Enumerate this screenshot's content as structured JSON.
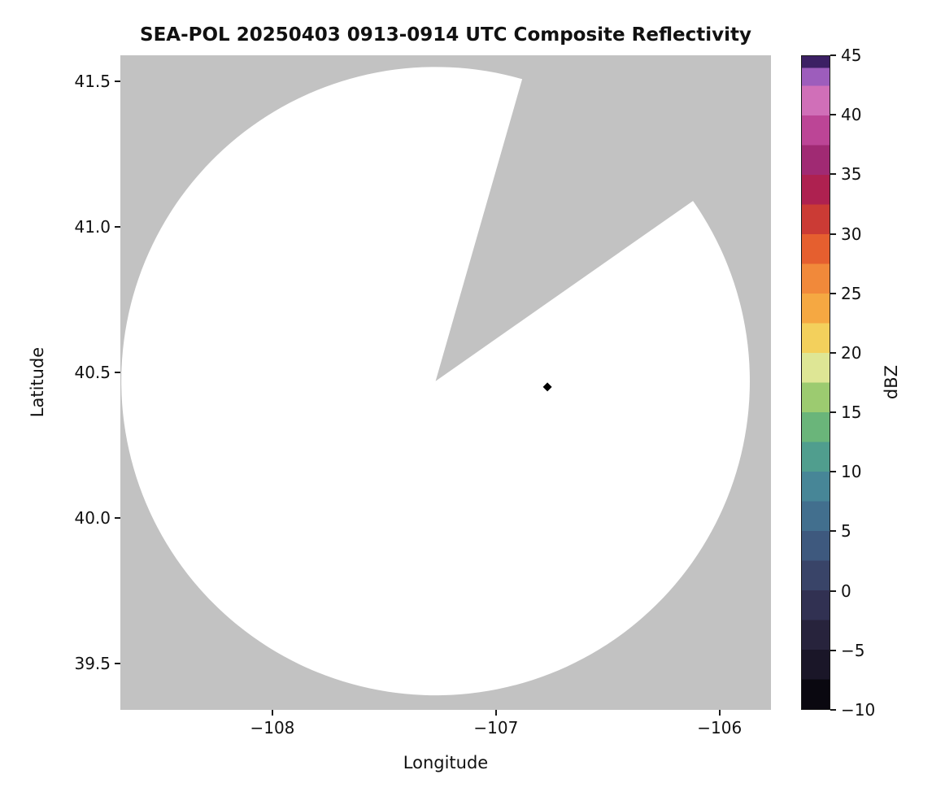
{
  "title": "SEA-POL 20250403 0913-0914 UTC Composite Reflectivity",
  "chart_data": {
    "type": "radar-composite-reflectivity-map",
    "title": "SEA-POL 20250403 0913-0914 UTC Composite Reflectivity",
    "xlabel": "Longitude",
    "ylabel": "Latitude",
    "axes": {
      "x": {
        "label": "Longitude",
        "lim": [
          -108.68,
          -105.77
        ],
        "ticks": [
          {
            "v": -108,
            "label": "−108"
          },
          {
            "v": -107,
            "label": "−107"
          },
          {
            "v": -106,
            "label": "−106"
          }
        ]
      },
      "y": {
        "label": "Latitude",
        "lim": [
          39.34,
          41.59
        ],
        "ticks": [
          {
            "v": 39.5,
            "label": "39.5"
          },
          {
            "v": 40.0,
            "label": "40.0"
          },
          {
            "v": 40.5,
            "label": "40.5"
          },
          {
            "v": 41.0,
            "label": "41.0"
          },
          {
            "v": 41.5,
            "label": "41.5"
          }
        ]
      }
    },
    "coverage": {
      "center_lon": -107.27,
      "center_lat": 40.47,
      "radius_deg_lat": 1.08,
      "missing_sector_az_deg": [
        16,
        55
      ],
      "fill": "#ffffff",
      "nodata_fill": "#c2c2c2"
    },
    "marker": {
      "lon": -106.77,
      "lat": 40.45,
      "shape": "diamond",
      "color": "#000000"
    },
    "colorbar": {
      "label": "dBZ",
      "lim": [
        -10,
        45
      ],
      "ticks": [
        {
          "v": -10,
          "label": "−10"
        },
        {
          "v": -5,
          "label": "−5"
        },
        {
          "v": 0,
          "label": "0"
        },
        {
          "v": 5,
          "label": "5"
        },
        {
          "v": 10,
          "label": "10"
        },
        {
          "v": 15,
          "label": "15"
        },
        {
          "v": 20,
          "label": "20"
        },
        {
          "v": 25,
          "label": "25"
        },
        {
          "v": 30,
          "label": "30"
        },
        {
          "v": 35,
          "label": "35"
        },
        {
          "v": 40,
          "label": "40"
        },
        {
          "v": 45,
          "label": "45"
        }
      ],
      "bands": [
        {
          "from": -10,
          "to": -7.5,
          "color": "#0a0810"
        },
        {
          "from": -7.5,
          "to": -5,
          "color": "#1a1628"
        },
        {
          "from": -5,
          "to": -2.5,
          "color": "#27233c"
        },
        {
          "from": -2.5,
          "to": 0,
          "color": "#313152"
        },
        {
          "from": 0,
          "to": 2.5,
          "color": "#394468"
        },
        {
          "from": 2.5,
          "to": 5,
          "color": "#3e597e"
        },
        {
          "from": 5,
          "to": 7.5,
          "color": "#426f8e"
        },
        {
          "from": 7.5,
          "to": 10,
          "color": "#478697"
        },
        {
          "from": 10,
          "to": 12.5,
          "color": "#509e8e"
        },
        {
          "from": 12.5,
          "to": 15,
          "color": "#6ab57a"
        },
        {
          "from": 15,
          "to": 17.5,
          "color": "#9ccb70"
        },
        {
          "from": 17.5,
          "to": 20,
          "color": "#dee695"
        },
        {
          "from": 20,
          "to": 22.5,
          "color": "#f3d05c"
        },
        {
          "from": 22.5,
          "to": 25,
          "color": "#f5a842"
        },
        {
          "from": 25,
          "to": 27.5,
          "color": "#f1893a"
        },
        {
          "from": 27.5,
          "to": 30,
          "color": "#e55f2f"
        },
        {
          "from": 30,
          "to": 32.5,
          "color": "#cb3b35"
        },
        {
          "from": 32.5,
          "to": 35,
          "color": "#ae2150"
        },
        {
          "from": 35,
          "to": 37.5,
          "color": "#a02a73"
        },
        {
          "from": 37.5,
          "to": 40,
          "color": "#bc4596"
        },
        {
          "from": 40,
          "to": 42.5,
          "color": "#d06fb8"
        },
        {
          "from": 42.5,
          "to": 44,
          "color": "#9d5dbc"
        },
        {
          "from": 44,
          "to": 45,
          "color": "#3c2064"
        }
      ]
    }
  }
}
